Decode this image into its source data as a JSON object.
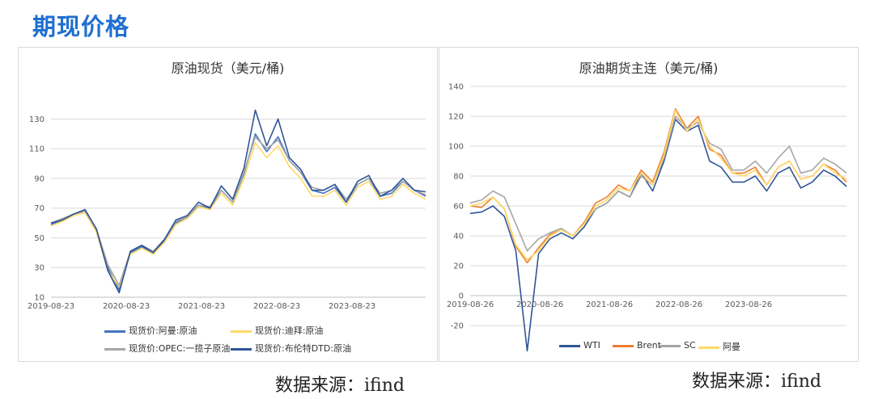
{
  "page_title": "期现价格",
  "source_left": "数据来源：ifind",
  "source_right": "数据来源：ifind",
  "chart_data": [
    {
      "id": "spot",
      "type": "line",
      "title": "原油现货（美元/桶)",
      "ylim": [
        10,
        140
      ],
      "yticks": [
        10,
        30,
        50,
        70,
        90,
        110,
        130
      ],
      "x_ticks": [
        "2019-08-23",
        "2020-08-23",
        "2021-08-23",
        "2022-08-23",
        "2023-08-23"
      ],
      "legend": [
        "现货价:阿曼:原油",
        "现货价:迪拜:原油",
        "现货价:OPEC:一揽子原油",
        "现货价:布伦特DTD:原油"
      ],
      "colors": [
        "#4472c4",
        "#ffd966",
        "#a5a5a5",
        "#2f5597"
      ],
      "x": [
        "2019-08",
        "2019-10",
        "2019-12",
        "2020-02",
        "2020-03",
        "2020-04",
        "2020-05",
        "2020-06",
        "2020-08",
        "2020-10",
        "2020-12",
        "2021-02",
        "2021-04",
        "2021-06",
        "2021-08",
        "2021-10",
        "2021-12",
        "2022-02",
        "2022-03",
        "2022-05",
        "2022-06",
        "2022-08",
        "2022-10",
        "2022-12",
        "2023-02",
        "2023-04",
        "2023-06",
        "2023-08",
        "2023-10",
        "2023-12",
        "2024-02",
        "2024-04",
        "2024-06",
        "2024-08"
      ],
      "series": [
        {
          "name": "现货价:阿曼:原油",
          "values": [
            59,
            62,
            66,
            68,
            55,
            30,
            15,
            40,
            44,
            40,
            48,
            60,
            64,
            72,
            70,
            82,
            74,
            93,
            120,
            108,
            118,
            102,
            94,
            82,
            80,
            84,
            74,
            86,
            90,
            78,
            80,
            88,
            82,
            78
          ]
        },
        {
          "name": "现货价:迪拜:原油",
          "values": [
            58,
            61,
            65,
            67,
            54,
            28,
            17,
            39,
            43,
            39,
            47,
            59,
            63,
            71,
            69,
            80,
            72,
            90,
            114,
            104,
            112,
            98,
            90,
            78,
            78,
            82,
            72,
            84,
            88,
            76,
            78,
            86,
            80,
            76
          ]
        },
        {
          "name": "现货价:OPEC:一揽子原油",
          "values": [
            60,
            63,
            66,
            68,
            56,
            32,
            18,
            41,
            45,
            41,
            49,
            61,
            64,
            72,
            71,
            82,
            74,
            94,
            118,
            110,
            116,
            102,
            94,
            84,
            82,
            86,
            76,
            86,
            90,
            80,
            82,
            88,
            82,
            79
          ]
        },
        {
          "name": "现货价:布伦特DTD:原油",
          "values": [
            60,
            62,
            66,
            69,
            56,
            28,
            13,
            41,
            45,
            40,
            49,
            62,
            65,
            74,
            70,
            85,
            76,
            97,
            136,
            112,
            130,
            104,
            96,
            82,
            82,
            86,
            74,
            88,
            92,
            78,
            82,
            90,
            82,
            81
          ]
        }
      ]
    },
    {
      "id": "futures",
      "type": "line",
      "title": "原油期货主连（美元/桶)",
      "ylim": [
        -20,
        140
      ],
      "yticks": [
        -20,
        0,
        20,
        40,
        60,
        80,
        100,
        120,
        140
      ],
      "x_ticks": [
        "2019-08-26",
        "2020-08-26",
        "2021-08-26",
        "2022-08-26",
        "2023-08-26"
      ],
      "legend": [
        "WTI",
        "Brent",
        "SC",
        "阿曼"
      ],
      "colors": [
        "#2f5597",
        "#ed7d31",
        "#a5a5a5",
        "#ffd966"
      ],
      "x": [
        "2019-08",
        "2019-10",
        "2019-12",
        "2020-02",
        "2020-03",
        "2020-04",
        "2020-05",
        "2020-06",
        "2020-08",
        "2020-10",
        "2020-12",
        "2021-02",
        "2021-04",
        "2021-06",
        "2021-08",
        "2021-10",
        "2021-12",
        "2022-02",
        "2022-03",
        "2022-05",
        "2022-06",
        "2022-08",
        "2022-10",
        "2022-12",
        "2023-02",
        "2023-04",
        "2023-06",
        "2023-08",
        "2023-10",
        "2023-12",
        "2024-02",
        "2024-04",
        "2024-06",
        "2024-08"
      ],
      "series": [
        {
          "name": "WTI",
          "values": [
            55,
            56,
            60,
            53,
            30,
            -37,
            28,
            38,
            42,
            38,
            46,
            58,
            62,
            70,
            66,
            82,
            70,
            90,
            118,
            110,
            114,
            90,
            86,
            76,
            76,
            80,
            70,
            82,
            86,
            72,
            76,
            84,
            80,
            73
          ]
        },
        {
          "name": "Brent",
          "values": [
            60,
            59,
            66,
            58,
            33,
            22,
            32,
            41,
            44,
            40,
            49,
            62,
            66,
            74,
            70,
            84,
            76,
            96,
            125,
            112,
            120,
            98,
            94,
            82,
            82,
            86,
            74,
            86,
            90,
            78,
            80,
            88,
            84,
            76
          ]
        },
        {
          "name": "SC",
          "values": [
            62,
            64,
            70,
            66,
            48,
            30,
            38,
            42,
            45,
            40,
            48,
            58,
            62,
            70,
            66,
            80,
            74,
            92,
            120,
            112,
            116,
            102,
            98,
            84,
            84,
            90,
            82,
            92,
            100,
            82,
            84,
            92,
            88,
            82
          ]
        },
        {
          "name": "阿曼",
          "values": [
            60,
            62,
            66,
            58,
            34,
            24,
            30,
            40,
            44,
            40,
            48,
            60,
            64,
            72,
            70,
            82,
            74,
            94,
            124,
            110,
            118,
            100,
            92,
            82,
            80,
            84,
            74,
            86,
            90,
            78,
            80,
            88,
            82,
            78
          ]
        }
      ]
    }
  ]
}
